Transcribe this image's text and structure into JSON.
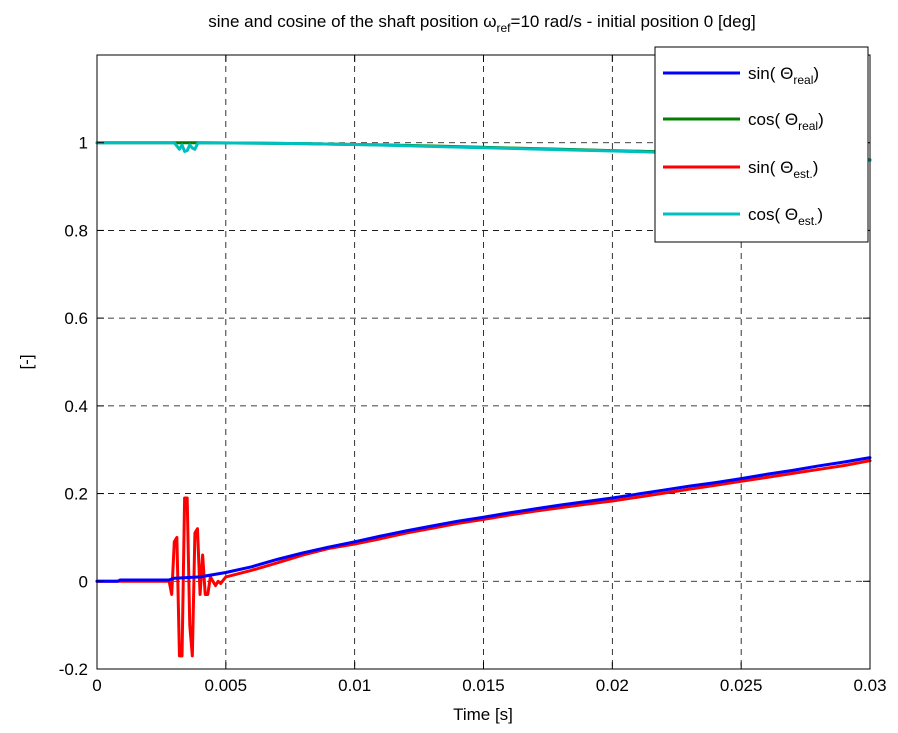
{
  "chart_data": {
    "type": "line",
    "title": {
      "before": "sine and cosine of the shaft position ",
      "symbol": "ω",
      "subscript": "ref",
      "after": "=10 rad/s - initial position 0 [deg]"
    },
    "xlabel": "Time [s]",
    "ylabel": "[-]",
    "xlim": [
      0,
      0.03
    ],
    "ylim": [
      -0.2,
      1.2
    ],
    "xticks": [
      0,
      0.005,
      0.01,
      0.015,
      0.02,
      0.025,
      0.03
    ],
    "xtick_labels": [
      "0",
      "0.005",
      "0.01",
      "0.015",
      "0.02",
      "0.025",
      "0.03"
    ],
    "yticks": [
      -0.2,
      0,
      0.2,
      0.4,
      0.6,
      0.8,
      1
    ],
    "ytick_labels": [
      "-0.2",
      "0",
      "0.2",
      "0.4",
      "0.6",
      "0.8",
      "1"
    ],
    "grid": true,
    "legend_position": "top-right",
    "series": [
      {
        "id": "sin-real",
        "legend": {
          "prefix": "sin( ",
          "symbol": "Θ",
          "subscript": "real",
          "suffix": ")"
        },
        "color": "#0000ff",
        "x": [
          0,
          0.0008,
          0.0009,
          0.0028,
          0.003,
          0.004,
          0.005,
          0.006,
          0.007,
          0.008,
          0.009,
          0.01,
          0.011,
          0.012,
          0.013,
          0.014,
          0.015,
          0.016,
          0.017,
          0.018,
          0.019,
          0.02,
          0.021,
          0.022,
          0.023,
          0.024,
          0.025,
          0.026,
          0.027,
          0.028,
          0.029,
          0.03
        ],
        "y": [
          0,
          0,
          0.003,
          0.003,
          0.007,
          0.01,
          0.02,
          0.033,
          0.05,
          0.065,
          0.078,
          0.09,
          0.103,
          0.115,
          0.126,
          0.137,
          0.146,
          0.156,
          0.165,
          0.174,
          0.182,
          0.19,
          0.199,
          0.208,
          0.217,
          0.225,
          0.234,
          0.244,
          0.253,
          0.263,
          0.272,
          0.282
        ]
      },
      {
        "id": "cos-real",
        "legend": {
          "prefix": "cos( ",
          "symbol": "Θ",
          "subscript": "real",
          "suffix": ")"
        },
        "color": "#007f00",
        "x": [
          0,
          0.002,
          0.004,
          0.006,
          0.008,
          0.01,
          0.012,
          0.014,
          0.016,
          0.018,
          0.02,
          0.022,
          0.024,
          0.026,
          0.028,
          0.03
        ],
        "y": [
          1,
          1,
          1,
          0.999,
          0.998,
          0.996,
          0.994,
          0.991,
          0.988,
          0.985,
          0.982,
          0.979,
          0.975,
          0.971,
          0.966,
          0.961
        ]
      },
      {
        "id": "sin-est",
        "legend": {
          "prefix": "sin( ",
          "symbol": "Θ",
          "subscript": "est.",
          "suffix": ")"
        },
        "color": "#ff0000",
        "x": [
          0,
          0.0028,
          0.0029,
          0.003,
          0.0031,
          0.0032,
          0.0033,
          0.0034,
          0.0035,
          0.0036,
          0.0037,
          0.0038,
          0.0039,
          0.004,
          0.0041,
          0.0042,
          0.0043,
          0.0044,
          0.0045,
          0.0046,
          0.0047,
          0.0048,
          0.005,
          0.006,
          0.007,
          0.008,
          0.009,
          0.01,
          0.011,
          0.012,
          0.013,
          0.014,
          0.015,
          0.016,
          0.017,
          0.018,
          0.019,
          0.02,
          0.021,
          0.022,
          0.023,
          0.024,
          0.025,
          0.026,
          0.027,
          0.028,
          0.029,
          0.03
        ],
        "y": [
          0,
          0,
          -0.03,
          0.09,
          0.1,
          -0.17,
          -0.17,
          0.19,
          0.19,
          -0.1,
          -0.17,
          0.11,
          0.12,
          -0.03,
          0.06,
          -0.03,
          -0.03,
          0.01,
          0,
          -0.01,
          0,
          -0.005,
          0.01,
          0.025,
          0.042,
          0.06,
          0.075,
          0.085,
          0.097,
          0.11,
          0.121,
          0.132,
          0.141,
          0.151,
          0.16,
          0.168,
          0.176,
          0.183,
          0.192,
          0.201,
          0.21,
          0.219,
          0.228,
          0.237,
          0.246,
          0.255,
          0.264,
          0.275
        ]
      },
      {
        "id": "cos-est",
        "legend": {
          "prefix": "cos( ",
          "symbol": "Θ",
          "subscript": "est.",
          "suffix": ")"
        },
        "color": "#00bfbf",
        "x": [
          0,
          0.003,
          0.0032,
          0.0033,
          0.0034,
          0.0035,
          0.0036,
          0.0037,
          0.0038,
          0.0039,
          0.004,
          0.006,
          0.008,
          0.01,
          0.012,
          0.014,
          0.016,
          0.018,
          0.02,
          0.022,
          0.024,
          0.026,
          0.028,
          0.03
        ],
        "y": [
          1,
          1,
          0.985,
          0.995,
          0.98,
          0.982,
          0.995,
          0.988,
          0.985,
          0.998,
          1,
          0.999,
          0.998,
          0.996,
          0.993,
          0.99,
          0.987,
          0.984,
          0.981,
          0.978,
          0.974,
          0.97,
          0.965,
          0.96
        ]
      }
    ]
  }
}
